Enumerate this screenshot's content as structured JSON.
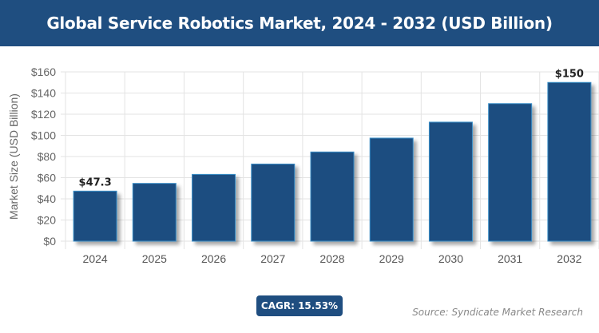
{
  "chart_data": {
    "type": "bar",
    "title": "Global Service Robotics Market, 2024 - 2032 (USD Billion)",
    "xlabel": "",
    "ylabel": "Market Size (USD Billion)",
    "categories": [
      "2024",
      "2025",
      "2026",
      "2027",
      "2028",
      "2029",
      "2030",
      "2031",
      "2032"
    ],
    "values": [
      47.3,
      54.6,
      63.1,
      72.9,
      84.3,
      97.4,
      112.5,
      130.0,
      150
    ],
    "data_labels": {
      "0": "$47.3",
      "8": "$150"
    },
    "ylim": [
      0,
      160
    ],
    "yticks": [
      "$0",
      "$20",
      "$40",
      "$60",
      "$80",
      "$100",
      "$120",
      "$140",
      "$160"
    ],
    "grid": true,
    "bar_color": "#1f4e80",
    "bar_border_color": "#3a8fc8"
  },
  "cagr_label": "CAGR: 15.53%",
  "source": "Source: Syndicate Market Research"
}
